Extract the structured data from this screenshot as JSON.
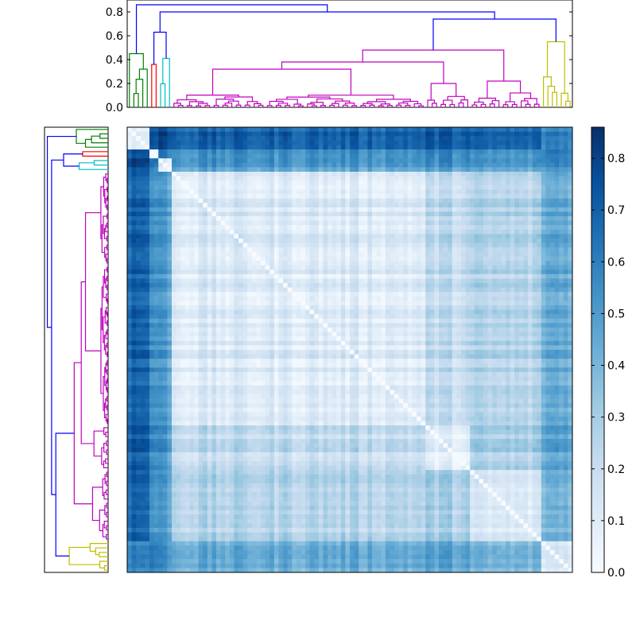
{
  "chart_data": [
    {
      "type": "line",
      "title": "",
      "subtitle": "dendrogram (columns)",
      "ylim": [
        0,
        0.9
      ],
      "yticks": [
        "0.0",
        "0.2",
        "0.4",
        "0.6",
        "0.8"
      ],
      "ytick_values": [
        0.0,
        0.2,
        0.4,
        0.6,
        0.8
      ],
      "leaf_count": 100,
      "cluster_colors": [
        "#008000",
        "#ff0000",
        "#00bfbf",
        "#bf00bf",
        "#bfbf00",
        "#0000ff"
      ],
      "links_note": "merge heights in data units"
    },
    {
      "type": "heatmap",
      "title": "",
      "rows": 100,
      "cols": 100,
      "grid": false,
      "cluster_sizes": [
        5,
        2,
        3,
        57,
        10,
        16,
        7
      ],
      "colormap": [
        "#f7fbff",
        "#deebf7",
        "#c6dbef",
        "#9ecae1",
        "#6baed6",
        "#4292c6",
        "#2171b5",
        "#08519c",
        "#08306b"
      ],
      "vmin": 0.0,
      "vmax": 0.86
    },
    {
      "type": "colorbar",
      "ticks": [
        "0.0",
        "0.1",
        "0.2",
        "0.3",
        "0.4",
        "0.5",
        "0.6",
        "0.7",
        "0.8"
      ],
      "tick_values": [
        0.0,
        0.1,
        0.2,
        0.3,
        0.4,
        0.5,
        0.6,
        0.7,
        0.8
      ],
      "vmin": 0.0,
      "vmax": 0.86
    }
  ]
}
